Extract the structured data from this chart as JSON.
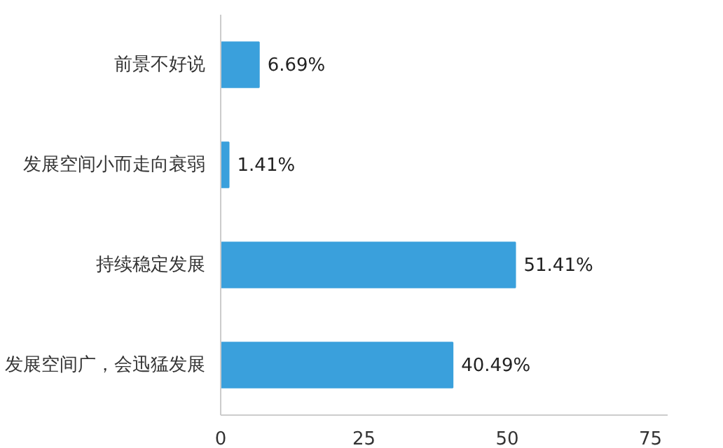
{
  "chart_data": {
    "type": "bar",
    "orientation": "horizontal",
    "categories": [
      "前景不好说",
      "发展空间小而走向衰弱",
      "持续稳定发展",
      "发展空间广，会迅猛发展"
    ],
    "values": [
      6.69,
      1.41,
      51.41,
      40.49
    ],
    "value_labels": [
      "6.69%",
      "1.41%",
      "51.41%",
      "40.49%"
    ],
    "color": "#3aa0dc",
    "xlim": [
      0,
      78
    ],
    "xticks": [
      0,
      25,
      50,
      75
    ],
    "grid": false
  }
}
